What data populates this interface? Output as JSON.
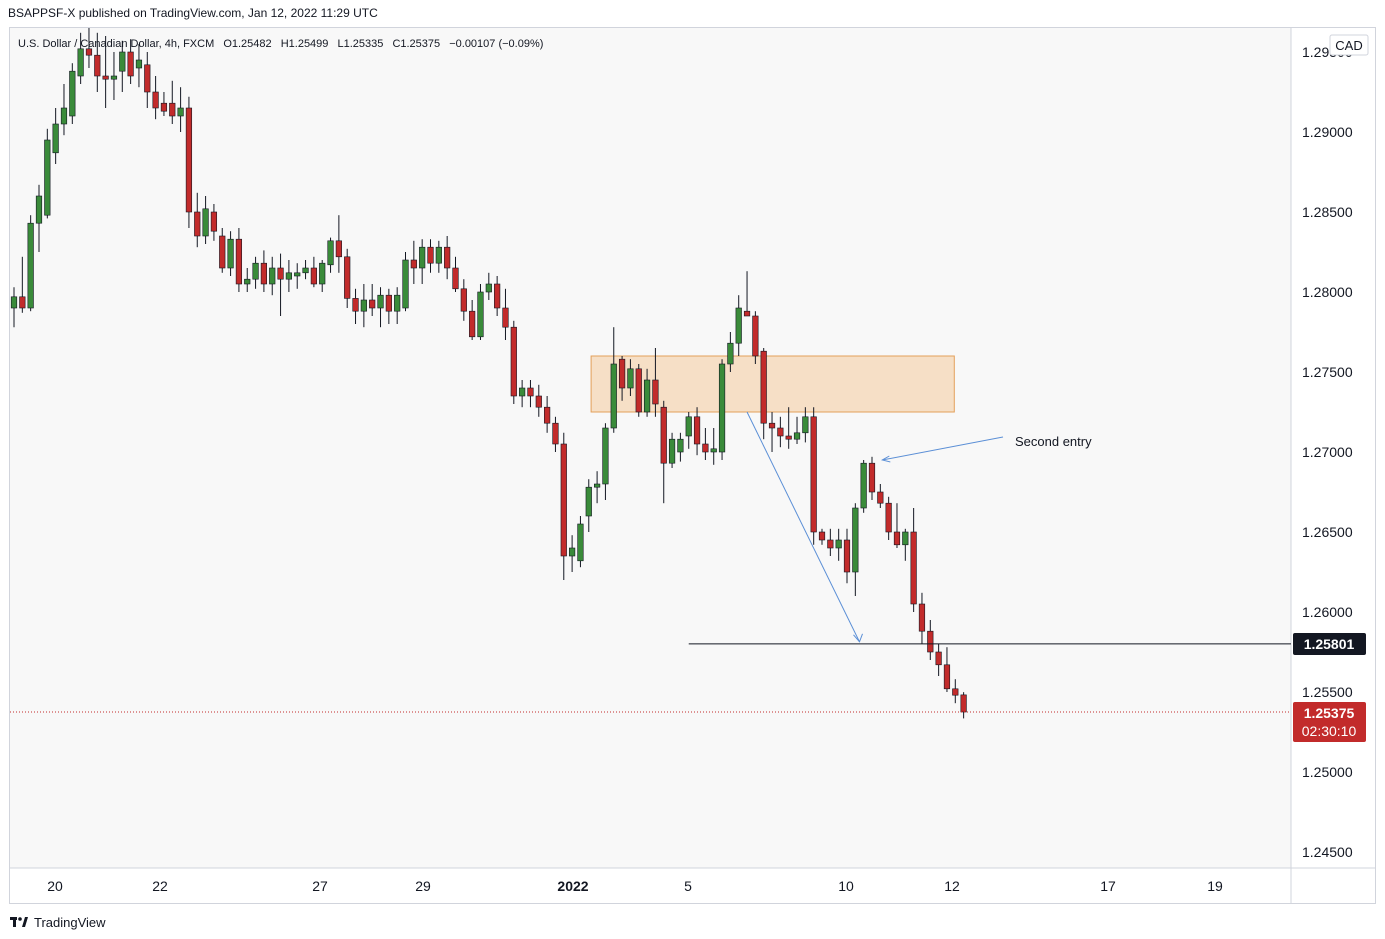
{
  "header": {
    "published_text": "BSAPPSF-X published on TradingView.com, Jan 12, 2022 11:29 UTC"
  },
  "legend": {
    "symbol_text": "U.S. Dollar / Canadian Dollar, 4h, FXCM",
    "open": "O1.25482",
    "high": "H1.25499",
    "low": "L1.25335",
    "close": "C1.25375",
    "change": "−0.00107 (−0.09%)"
  },
  "currency_badge": "CAD",
  "price_axis": {
    "ticks": [
      "1.29500",
      "1.29000",
      "1.28500",
      "1.28000",
      "1.27500",
      "1.27000",
      "1.26500",
      "1.26000",
      "1.25500",
      "1.25000",
      "1.24500"
    ]
  },
  "price_labels": {
    "level_value": "1.25801",
    "last_price": "1.25375",
    "countdown": "02:30:10"
  },
  "date_axis": {
    "ticks": [
      {
        "label": "20",
        "bold": false
      },
      {
        "label": "22",
        "bold": false
      },
      {
        "label": "27",
        "bold": false
      },
      {
        "label": "29",
        "bold": false
      },
      {
        "label": "2022",
        "bold": true
      },
      {
        "label": "5",
        "bold": false
      },
      {
        "label": "10",
        "bold": false
      },
      {
        "label": "12",
        "bold": false
      },
      {
        "label": "17",
        "bold": false
      },
      {
        "label": "19",
        "bold": false
      }
    ]
  },
  "annotations": {
    "second_entry": "Second entry"
  },
  "footer": {
    "brand": "TradingView"
  },
  "colors": {
    "up": "#3a8b3a",
    "down": "#c22b2b",
    "zone_fill": "#f5c089",
    "zone_border": "#e3a05a",
    "arrow": "#5b8fd6",
    "last_price_bg": "#c22b2b",
    "level_bg": "#131722"
  },
  "chart_data": {
    "type": "candlestick",
    "symbol": "USDCAD",
    "timeframe": "4h",
    "ylim": [
      1.243,
      1.298
    ],
    "candles": [
      {
        "o": 1.279,
        "h": 1.2803,
        "l": 1.2778,
        "c": 1.2797
      },
      {
        "o": 1.2797,
        "h": 1.2822,
        "l": 1.2787,
        "c": 1.279
      },
      {
        "o": 1.279,
        "h": 1.2848,
        "l": 1.2788,
        "c": 1.2843
      },
      {
        "o": 1.2843,
        "h": 1.2867,
        "l": 1.2825,
        "c": 1.286
      },
      {
        "o": 1.2848,
        "h": 1.2902,
        "l": 1.2846,
        "c": 1.2895
      },
      {
        "o": 1.2887,
        "h": 1.2915,
        "l": 1.288,
        "c": 1.2905
      },
      {
        "o": 1.2905,
        "h": 1.293,
        "l": 1.2898,
        "c": 1.2915
      },
      {
        "o": 1.291,
        "h": 1.2943,
        "l": 1.2905,
        "c": 1.2938
      },
      {
        "o": 1.2935,
        "h": 1.2962,
        "l": 1.293,
        "c": 1.2952
      },
      {
        "o": 1.2952,
        "h": 1.297,
        "l": 1.294,
        "c": 1.2948
      },
      {
        "o": 1.2948,
        "h": 1.2962,
        "l": 1.2925,
        "c": 1.2935
      },
      {
        "o": 1.2935,
        "h": 1.296,
        "l": 1.2915,
        "c": 1.2933
      },
      {
        "o": 1.2933,
        "h": 1.295,
        "l": 1.292,
        "c": 1.2935
      },
      {
        "o": 1.2938,
        "h": 1.2957,
        "l": 1.2925,
        "c": 1.295
      },
      {
        "o": 1.295,
        "h": 1.2958,
        "l": 1.293,
        "c": 1.2935
      },
      {
        "o": 1.294,
        "h": 1.2955,
        "l": 1.2928,
        "c": 1.2945
      },
      {
        "o": 1.2942,
        "h": 1.295,
        "l": 1.2915,
        "c": 1.2925
      },
      {
        "o": 1.2925,
        "h": 1.2935,
        "l": 1.2908,
        "c": 1.2915
      },
      {
        "o": 1.2918,
        "h": 1.2925,
        "l": 1.291,
        "c": 1.2913
      },
      {
        "o": 1.2918,
        "h": 1.2932,
        "l": 1.2905,
        "c": 1.291
      },
      {
        "o": 1.291,
        "h": 1.2928,
        "l": 1.29,
        "c": 1.2915
      },
      {
        "o": 1.2915,
        "h": 1.2922,
        "l": 1.284,
        "c": 1.285
      },
      {
        "o": 1.285,
        "h": 1.2862,
        "l": 1.2828,
        "c": 1.2835
      },
      {
        "o": 1.2835,
        "h": 1.286,
        "l": 1.283,
        "c": 1.2852
      },
      {
        "o": 1.285,
        "h": 1.2855,
        "l": 1.2832,
        "c": 1.2838
      },
      {
        "o": 1.2835,
        "h": 1.284,
        "l": 1.2812,
        "c": 1.2815
      },
      {
        "o": 1.2815,
        "h": 1.2838,
        "l": 1.281,
        "c": 1.2833
      },
      {
        "o": 1.2833,
        "h": 1.284,
        "l": 1.28,
        "c": 1.2805
      },
      {
        "o": 1.2805,
        "h": 1.2815,
        "l": 1.28,
        "c": 1.2808
      },
      {
        "o": 1.2808,
        "h": 1.2822,
        "l": 1.2802,
        "c": 1.2818
      },
      {
        "o": 1.2818,
        "h": 1.2826,
        "l": 1.28,
        "c": 1.2805
      },
      {
        "o": 1.2805,
        "h": 1.2822,
        "l": 1.2798,
        "c": 1.2815
      },
      {
        "o": 1.2815,
        "h": 1.2824,
        "l": 1.2785,
        "c": 1.2808
      },
      {
        "o": 1.2808,
        "h": 1.282,
        "l": 1.28,
        "c": 1.2812
      },
      {
        "o": 1.281,
        "h": 1.2818,
        "l": 1.2802,
        "c": 1.2812
      },
      {
        "o": 1.2812,
        "h": 1.282,
        "l": 1.2808,
        "c": 1.2815
      },
      {
        "o": 1.2815,
        "h": 1.2822,
        "l": 1.2803,
        "c": 1.2805
      },
      {
        "o": 1.2805,
        "h": 1.282,
        "l": 1.28,
        "c": 1.2818
      },
      {
        "o": 1.2817,
        "h": 1.2834,
        "l": 1.2812,
        "c": 1.2832
      },
      {
        "o": 1.2832,
        "h": 1.2848,
        "l": 1.2812,
        "c": 1.2822
      },
      {
        "o": 1.2822,
        "h": 1.2827,
        "l": 1.279,
        "c": 1.2796
      },
      {
        "o": 1.2796,
        "h": 1.2802,
        "l": 1.278,
        "c": 1.2788
      },
      {
        "o": 1.2788,
        "h": 1.2805,
        "l": 1.2778,
        "c": 1.2795
      },
      {
        "o": 1.2795,
        "h": 1.2805,
        "l": 1.2785,
        "c": 1.279
      },
      {
        "o": 1.279,
        "h": 1.2803,
        "l": 1.2778,
        "c": 1.2798
      },
      {
        "o": 1.2798,
        "h": 1.2802,
        "l": 1.278,
        "c": 1.2788
      },
      {
        "o": 1.2788,
        "h": 1.2803,
        "l": 1.278,
        "c": 1.2798
      },
      {
        "o": 1.279,
        "h": 1.2825,
        "l": 1.2788,
        "c": 1.282
      },
      {
        "o": 1.282,
        "h": 1.2832,
        "l": 1.2805,
        "c": 1.2815
      },
      {
        "o": 1.2815,
        "h": 1.2833,
        "l": 1.2805,
        "c": 1.2828
      },
      {
        "o": 1.2828,
        "h": 1.2833,
        "l": 1.2812,
        "c": 1.2818
      },
      {
        "o": 1.2818,
        "h": 1.2832,
        "l": 1.2812,
        "c": 1.2828
      },
      {
        "o": 1.2828,
        "h": 1.2835,
        "l": 1.2808,
        "c": 1.2815
      },
      {
        "o": 1.2815,
        "h": 1.2822,
        "l": 1.28,
        "c": 1.2802
      },
      {
        "o": 1.2802,
        "h": 1.2808,
        "l": 1.2782,
        "c": 1.2788
      },
      {
        "o": 1.2788,
        "h": 1.2795,
        "l": 1.277,
        "c": 1.2772
      },
      {
        "o": 1.2772,
        "h": 1.2805,
        "l": 1.277,
        "c": 1.28
      },
      {
        "o": 1.28,
        "h": 1.2812,
        "l": 1.2795,
        "c": 1.2805
      },
      {
        "o": 1.2805,
        "h": 1.281,
        "l": 1.2785,
        "c": 1.279
      },
      {
        "o": 1.279,
        "h": 1.2802,
        "l": 1.277,
        "c": 1.2778
      },
      {
        "o": 1.2778,
        "h": 1.2782,
        "l": 1.273,
        "c": 1.2735
      },
      {
        "o": 1.2735,
        "h": 1.2745,
        "l": 1.2728,
        "c": 1.274
      },
      {
        "o": 1.274,
        "h": 1.2745,
        "l": 1.2728,
        "c": 1.2735
      },
      {
        "o": 1.2735,
        "h": 1.2742,
        "l": 1.2722,
        "c": 1.2728
      },
      {
        "o": 1.2728,
        "h": 1.2735,
        "l": 1.2712,
        "c": 1.2718
      },
      {
        "o": 1.2718,
        "h": 1.2722,
        "l": 1.27,
        "c": 1.2705
      },
      {
        "o": 1.2705,
        "h": 1.2712,
        "l": 1.262,
        "c": 1.2635
      },
      {
        "o": 1.2635,
        "h": 1.2648,
        "l": 1.2625,
        "c": 1.264
      },
      {
        "o": 1.2632,
        "h": 1.266,
        "l": 1.2628,
        "c": 1.2655
      },
      {
        "o": 1.266,
        "h": 1.2683,
        "l": 1.265,
        "c": 1.2678
      },
      {
        "o": 1.2678,
        "h": 1.2688,
        "l": 1.2668,
        "c": 1.268
      },
      {
        "o": 1.268,
        "h": 1.2718,
        "l": 1.267,
        "c": 1.2715
      },
      {
        "o": 1.2715,
        "h": 1.2778,
        "l": 1.2712,
        "c": 1.2755
      },
      {
        "o": 1.2758,
        "h": 1.276,
        "l": 1.2732,
        "c": 1.274
      },
      {
        "o": 1.274,
        "h": 1.2758,
        "l": 1.2735,
        "c": 1.2752
      },
      {
        "o": 1.2752,
        "h": 1.2755,
        "l": 1.2722,
        "c": 1.2725
      },
      {
        "o": 1.2725,
        "h": 1.2752,
        "l": 1.2722,
        "c": 1.2745
      },
      {
        "o": 1.2745,
        "h": 1.2765,
        "l": 1.2722,
        "c": 1.273
      },
      {
        "o": 1.2728,
        "h": 1.2732,
        "l": 1.2668,
        "c": 1.2693
      },
      {
        "o": 1.2693,
        "h": 1.2712,
        "l": 1.269,
        "c": 1.2708
      },
      {
        "o": 1.27,
        "h": 1.2712,
        "l": 1.2694,
        "c": 1.2708
      },
      {
        "o": 1.271,
        "h": 1.2725,
        "l": 1.2702,
        "c": 1.2722
      },
      {
        "o": 1.2722,
        "h": 1.2728,
        "l": 1.2698,
        "c": 1.2705
      },
      {
        "o": 1.2705,
        "h": 1.2715,
        "l": 1.2695,
        "c": 1.27
      },
      {
        "o": 1.27,
        "h": 1.2715,
        "l": 1.2692,
        "c": 1.2702
      },
      {
        "o": 1.27,
        "h": 1.2758,
        "l": 1.2695,
        "c": 1.2755
      },
      {
        "o": 1.2755,
        "h": 1.2775,
        "l": 1.275,
        "c": 1.2768
      },
      {
        "o": 1.2768,
        "h": 1.2798,
        "l": 1.276,
        "c": 1.279
      },
      {
        "o": 1.2788,
        "h": 1.2813,
        "l": 1.2785,
        "c": 1.2785
      },
      {
        "o": 1.2785,
        "h": 1.2788,
        "l": 1.2755,
        "c": 1.276
      },
      {
        "o": 1.2763,
        "h": 1.2765,
        "l": 1.2708,
        "c": 1.2718
      },
      {
        "o": 1.2718,
        "h": 1.2725,
        "l": 1.27,
        "c": 1.2715
      },
      {
        "o": 1.2715,
        "h": 1.2722,
        "l": 1.2703,
        "c": 1.271
      },
      {
        "o": 1.271,
        "h": 1.2728,
        "l": 1.2702,
        "c": 1.2708
      },
      {
        "o": 1.2708,
        "h": 1.2722,
        "l": 1.2705,
        "c": 1.2712
      },
      {
        "o": 1.2712,
        "h": 1.2728,
        "l": 1.2706,
        "c": 1.2722
      },
      {
        "o": 1.2722,
        "h": 1.2728,
        "l": 1.2642,
        "c": 1.265
      },
      {
        "o": 1.265,
        "h": 1.2652,
        "l": 1.2642,
        "c": 1.2645
      },
      {
        "o": 1.2645,
        "h": 1.2652,
        "l": 1.2635,
        "c": 1.264
      },
      {
        "o": 1.264,
        "h": 1.2652,
        "l": 1.2632,
        "c": 1.2645
      },
      {
        "o": 1.2645,
        "h": 1.2652,
        "l": 1.2618,
        "c": 1.2625
      },
      {
        "o": 1.2625,
        "h": 1.2668,
        "l": 1.261,
        "c": 1.2665
      },
      {
        "o": 1.2665,
        "h": 1.2695,
        "l": 1.2662,
        "c": 1.2693
      },
      {
        "o": 1.2693,
        "h": 1.2697,
        "l": 1.267,
        "c": 1.2675
      },
      {
        "o": 1.2675,
        "h": 1.268,
        "l": 1.2665,
        "c": 1.2668
      },
      {
        "o": 1.2668,
        "h": 1.2672,
        "l": 1.2645,
        "c": 1.265
      },
      {
        "o": 1.265,
        "h": 1.2668,
        "l": 1.264,
        "c": 1.2642
      },
      {
        "o": 1.2642,
        "h": 1.2652,
        "l": 1.2632,
        "c": 1.265
      },
      {
        "o": 1.265,
        "h": 1.2665,
        "l": 1.26,
        "c": 1.2605
      },
      {
        "o": 1.2605,
        "h": 1.2612,
        "l": 1.258,
        "c": 1.2588
      },
      {
        "o": 1.2588,
        "h": 1.2595,
        "l": 1.257,
        "c": 1.2575
      },
      {
        "o": 1.2575,
        "h": 1.258,
        "l": 1.256,
        "c": 1.2567
      },
      {
        "o": 1.2567,
        "h": 1.2578,
        "l": 1.255,
        "c": 1.2552
      },
      {
        "o": 1.2552,
        "h": 1.2558,
        "l": 1.2543,
        "c": 1.2548
      },
      {
        "o": 1.25482,
        "h": 1.25499,
        "l": 1.25335,
        "c": 1.25375
      }
    ],
    "zone": {
      "high": 1.276,
      "low": 1.2725
    },
    "horizontal_level": 1.25801,
    "last_price": 1.25375,
    "grid": false
  }
}
